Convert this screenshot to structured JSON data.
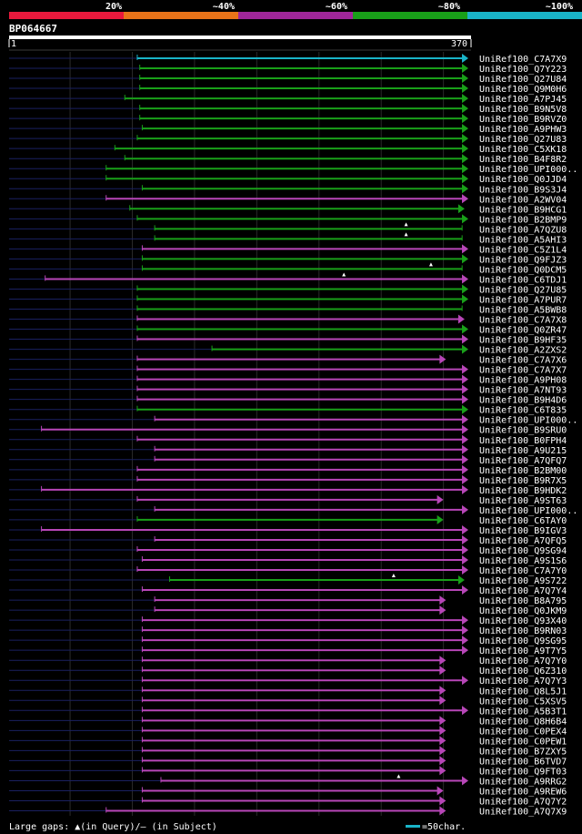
{
  "query": {
    "id": "BP064667",
    "start_label": "1",
    "end_label": "370",
    "length": 370
  },
  "legend": {
    "bins": [
      {
        "label": "20%",
        "color": "#e8193c"
      },
      {
        "label": "~40%",
        "color": "#e87319"
      },
      {
        "label": "~60%",
        "color": "#a0269a"
      },
      {
        "label": "~80%",
        "color": "#19a019"
      },
      {
        "label": "~100%",
        "color": "#19b4c8"
      }
    ],
    "footer_text": "Large gaps: ▲(in Query)/— (in Subject)",
    "scale_text": "=50char.",
    "scale_color": "#19b4c8"
  },
  "colors": {
    "cyan": "#19b4c8",
    "green": "#19a019",
    "magenta": "#b846b8",
    "dim": "#1a2060"
  },
  "hits": [
    {
      "name": "UniRef100_C7A7X9",
      "start": 104,
      "end": 370,
      "bin": "cyan",
      "arrow": true
    },
    {
      "name": "UniRef100_Q7Y223",
      "start": 106,
      "end": 370,
      "bin": "green",
      "arrow": true
    },
    {
      "name": "UniRef100_Q27U84",
      "start": 106,
      "end": 370,
      "bin": "green",
      "arrow": true
    },
    {
      "name": "UniRef100_Q9M0H6",
      "start": 106,
      "end": 370,
      "bin": "green",
      "arrow": true
    },
    {
      "name": "UniRef100_A7PJ45",
      "start": 94,
      "end": 370,
      "bin": "green",
      "arrow": true
    },
    {
      "name": "UniRef100_B9N5V8",
      "start": 106,
      "end": 370,
      "bin": "green",
      "arrow": true
    },
    {
      "name": "UniRef100_B9RVZ0",
      "start": 106,
      "end": 370,
      "bin": "green",
      "arrow": true
    },
    {
      "name": "UniRef100_A9PHW3",
      "start": 108,
      "end": 370,
      "bin": "green",
      "arrow": true
    },
    {
      "name": "UniRef100_Q27U83",
      "start": 104,
      "end": 370,
      "bin": "green",
      "arrow": true
    },
    {
      "name": "UniRef100_C5XK18",
      "start": 86,
      "end": 370,
      "bin": "green",
      "arrow": true
    },
    {
      "name": "UniRef100_B4F8R2",
      "start": 94,
      "end": 370,
      "bin": "green",
      "arrow": true
    },
    {
      "name": "UniRef100_UPI000..",
      "start": 79,
      "end": 370,
      "bin": "green",
      "arrow": true
    },
    {
      "name": "UniRef100_Q0JJD4",
      "start": 79,
      "end": 370,
      "bin": "green",
      "arrow": true
    },
    {
      "name": "UniRef100_B9S3J4",
      "start": 108,
      "end": 370,
      "bin": "green",
      "arrow": true
    },
    {
      "name": "UniRef100_A2WV04",
      "start": 79,
      "end": 370,
      "bin": "magenta",
      "arrow": true
    },
    {
      "name": "UniRef100_B9HCG1",
      "start": 98,
      "end": 367,
      "bin": "green",
      "arrow": true
    },
    {
      "name": "UniRef100_B2BMP9",
      "start": 104,
      "end": 370,
      "bin": "green",
      "arrow": true
    },
    {
      "name": "UniRef100_A7QZU8",
      "start": 118,
      "end": 365,
      "bin": "green",
      "arrow": false
    },
    {
      "name": "UniRef100_A5AHI3",
      "start": 118,
      "end": 365,
      "bin": "green",
      "arrow": false
    },
    {
      "name": "UniRef100_C5Z1L4",
      "start": 108,
      "end": 370,
      "bin": "magenta",
      "arrow": true
    },
    {
      "name": "UniRef100_Q9FJZ3",
      "start": 108,
      "end": 370,
      "bin": "green",
      "arrow": true
    },
    {
      "name": "UniRef100_Q0DCM5",
      "start": 108,
      "end": 365,
      "bin": "green",
      "arrow": false
    },
    {
      "name": "UniRef100_C6TDJ1",
      "start": 30,
      "end": 370,
      "bin": "magenta",
      "arrow": true
    },
    {
      "name": "UniRef100_Q27U85",
      "start": 104,
      "end": 370,
      "bin": "green",
      "arrow": true
    },
    {
      "name": "UniRef100_A7PUR7",
      "start": 104,
      "end": 370,
      "bin": "green",
      "arrow": true
    },
    {
      "name": "UniRef100_A5BWB8",
      "start": 104,
      "end": 365,
      "bin": "green",
      "arrow": false
    },
    {
      "name": "UniRef100_C7A7X8",
      "start": 104,
      "end": 367,
      "bin": "magenta",
      "arrow": true
    },
    {
      "name": "UniRef100_Q0ZR47",
      "start": 104,
      "end": 370,
      "bin": "green",
      "arrow": true
    },
    {
      "name": "UniRef100_B9HF35",
      "start": 104,
      "end": 370,
      "bin": "magenta",
      "arrow": true
    },
    {
      "name": "UniRef100_A2ZXS2",
      "start": 164,
      "end": 370,
      "bin": "green",
      "arrow": true
    },
    {
      "name": "UniRef100_C7A7X6",
      "start": 104,
      "end": 352,
      "bin": "magenta",
      "arrow": true
    },
    {
      "name": "UniRef100_C7A7X7",
      "start": 104,
      "end": 370,
      "bin": "magenta",
      "arrow": true
    },
    {
      "name": "UniRef100_A9PH08",
      "start": 104,
      "end": 370,
      "bin": "magenta",
      "arrow": true
    },
    {
      "name": "UniRef100_A7NT93",
      "start": 104,
      "end": 370,
      "bin": "magenta",
      "arrow": true
    },
    {
      "name": "UniRef100_B9H4D6",
      "start": 104,
      "end": 370,
      "bin": "magenta",
      "arrow": true
    },
    {
      "name": "UniRef100_C6T835",
      "start": 104,
      "end": 370,
      "bin": "green",
      "arrow": true
    },
    {
      "name": "UniRef100_UPI000..",
      "start": 118,
      "end": 370,
      "bin": "magenta",
      "arrow": true
    },
    {
      "name": "UniRef100_B9SRU0",
      "start": 27,
      "end": 370,
      "bin": "magenta",
      "arrow": true
    },
    {
      "name": "UniRef100_B0FPH4",
      "start": 104,
      "end": 370,
      "bin": "magenta",
      "arrow": true
    },
    {
      "name": "UniRef100_A9U215",
      "start": 118,
      "end": 370,
      "bin": "magenta",
      "arrow": true
    },
    {
      "name": "UniRef100_A7QFQ7",
      "start": 118,
      "end": 370,
      "bin": "magenta",
      "arrow": true
    },
    {
      "name": "UniRef100_B2BM00",
      "start": 104,
      "end": 370,
      "bin": "magenta",
      "arrow": true
    },
    {
      "name": "UniRef100_B9R7X5",
      "start": 104,
      "end": 370,
      "bin": "magenta",
      "arrow": true
    },
    {
      "name": "UniRef100_B9HDK2",
      "start": 27,
      "end": 370,
      "bin": "magenta",
      "arrow": true
    },
    {
      "name": "UniRef100_A9ST63",
      "start": 104,
      "end": 350,
      "bin": "magenta",
      "arrow": true
    },
    {
      "name": "UniRef100_UPI000..",
      "start": 118,
      "end": 370,
      "bin": "magenta",
      "arrow": true
    },
    {
      "name": "UniRef100_C6TAY0",
      "start": 104,
      "end": 350,
      "bin": "green",
      "arrow": true
    },
    {
      "name": "UniRef100_B9IGV3",
      "start": 27,
      "end": 370,
      "bin": "magenta",
      "arrow": true
    },
    {
      "name": "UniRef100_A7QFQ5",
      "start": 118,
      "end": 370,
      "bin": "magenta",
      "arrow": true
    },
    {
      "name": "UniRef100_Q9SG94",
      "start": 104,
      "end": 370,
      "bin": "magenta",
      "arrow": true
    },
    {
      "name": "UniRef100_A9S1S6",
      "start": 108,
      "end": 370,
      "bin": "magenta",
      "arrow": true
    },
    {
      "name": "UniRef100_C7A7Y0",
      "start": 104,
      "end": 370,
      "bin": "magenta",
      "arrow": true
    },
    {
      "name": "UniRef100_A9S722",
      "start": 130,
      "end": 367,
      "bin": "green",
      "arrow": true
    },
    {
      "name": "UniRef100_A7Q7Y4",
      "start": 108,
      "end": 370,
      "bin": "magenta",
      "arrow": true
    },
    {
      "name": "UniRef100_B8A795",
      "start": 118,
      "end": 352,
      "bin": "magenta",
      "arrow": true
    },
    {
      "name": "UniRef100_Q0JKM9",
      "start": 118,
      "end": 352,
      "bin": "magenta",
      "arrow": true
    },
    {
      "name": "UniRef100_Q93X40",
      "start": 108,
      "end": 370,
      "bin": "magenta",
      "arrow": true
    },
    {
      "name": "UniRef100_B9RN03",
      "start": 108,
      "end": 370,
      "bin": "magenta",
      "arrow": true
    },
    {
      "name": "UniRef100_Q9SG95",
      "start": 108,
      "end": 370,
      "bin": "magenta",
      "arrow": true
    },
    {
      "name": "UniRef100_A9T7Y5",
      "start": 108,
      "end": 370,
      "bin": "magenta",
      "arrow": true
    },
    {
      "name": "UniRef100_A7Q7Y0",
      "start": 108,
      "end": 352,
      "bin": "magenta",
      "arrow": true
    },
    {
      "name": "UniRef100_Q6Z310",
      "start": 108,
      "end": 352,
      "bin": "magenta",
      "arrow": true
    },
    {
      "name": "UniRef100_A7Q7Y3",
      "start": 108,
      "end": 370,
      "bin": "magenta",
      "arrow": true
    },
    {
      "name": "UniRef100_Q8L5J1",
      "start": 108,
      "end": 352,
      "bin": "magenta",
      "arrow": true
    },
    {
      "name": "UniRef100_C5XSV5",
      "start": 108,
      "end": 352,
      "bin": "magenta",
      "arrow": true
    },
    {
      "name": "UniRef100_A5B3T1",
      "start": 108,
      "end": 370,
      "bin": "magenta",
      "arrow": true
    },
    {
      "name": "UniRef100_Q8H6B4",
      "start": 108,
      "end": 352,
      "bin": "magenta",
      "arrow": true
    },
    {
      "name": "UniRef100_C0PEX4",
      "start": 108,
      "end": 352,
      "bin": "magenta",
      "arrow": true
    },
    {
      "name": "UniRef100_C0PEW1",
      "start": 108,
      "end": 352,
      "bin": "magenta",
      "arrow": true
    },
    {
      "name": "UniRef100_B7ZXY5",
      "start": 108,
      "end": 352,
      "bin": "magenta",
      "arrow": true
    },
    {
      "name": "UniRef100_B6TVD7",
      "start": 108,
      "end": 352,
      "bin": "magenta",
      "arrow": true
    },
    {
      "name": "UniRef100_Q9FT03",
      "start": 108,
      "end": 352,
      "bin": "magenta",
      "arrow": true
    },
    {
      "name": "UniRef100_A9RRG2",
      "start": 123,
      "end": 370,
      "bin": "magenta",
      "arrow": true
    },
    {
      "name": "UniRef100_A9REW6",
      "start": 108,
      "end": 350,
      "bin": "magenta",
      "arrow": true
    },
    {
      "name": "UniRef100_A7Q7Y2",
      "start": 108,
      "end": 352,
      "bin": "magenta",
      "arrow": true
    },
    {
      "name": "UniRef100_A7Q7X9",
      "start": 79,
      "end": 352,
      "bin": "magenta",
      "arrow": true
    }
  ],
  "query_gaps": [
    {
      "row": 17,
      "pos": 320
    },
    {
      "row": 18,
      "pos": 320
    },
    {
      "row": 21,
      "pos": 340
    },
    {
      "row": 22,
      "pos": 270
    },
    {
      "row": 52,
      "pos": 310
    },
    {
      "row": 72,
      "pos": 314
    }
  ]
}
